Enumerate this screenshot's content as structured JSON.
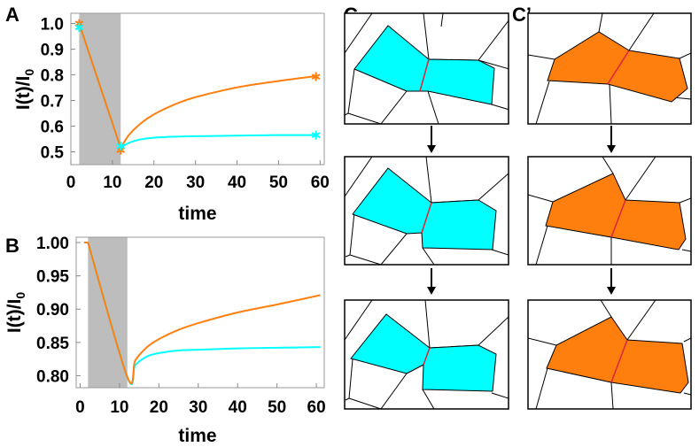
{
  "panel_letters": {
    "a": "A",
    "b": "B",
    "c": "C",
    "c_prime": "C’"
  },
  "colors": {
    "cyan": "#00ffff",
    "orange": "#ff7f0e",
    "shade": "#bdbdbd",
    "junction": "#e0263a"
  },
  "icons": {
    "arrow": "down-arrow-icon",
    "marker": "asterisk-marker-icon"
  },
  "chart_data": [
    {
      "type": "line",
      "panel": "A",
      "title": "",
      "xlabel": "time",
      "ylabel": "I(t)/I0",
      "xlim": [
        0,
        61
      ],
      "ylim": [
        0.45,
        1.04
      ],
      "xticks": [
        "0",
        "10",
        "20",
        "30",
        "40",
        "50",
        "60"
      ],
      "yticks": [
        "0.5",
        "0.6",
        "0.7",
        "0.8",
        "0.9",
        "1.0"
      ],
      "shaded_region": [
        2,
        12
      ],
      "series": [
        {
          "name": "cyan",
          "color": "#00ffff",
          "x": [
            2,
            12,
            14,
            17,
            20,
            25,
            30,
            40,
            50,
            59
          ],
          "y": [
            1.0,
            0.515,
            0.535,
            0.549,
            0.555,
            0.559,
            0.561,
            0.563,
            0.565,
            0.565
          ]
        },
        {
          "name": "orange",
          "color": "#ff7f0e",
          "x": [
            2,
            12,
            14,
            17,
            20,
            25,
            30,
            40,
            50,
            59
          ],
          "y": [
            1.0,
            0.515,
            0.566,
            0.613,
            0.646,
            0.685,
            0.713,
            0.751,
            0.776,
            0.795
          ]
        }
      ],
      "markers": [
        {
          "series": "orange",
          "x": 2,
          "y": 1.0
        },
        {
          "series": "cyan",
          "x": 2,
          "y": 0.985
        },
        {
          "series": "orange",
          "x": 12,
          "y": 0.507
        },
        {
          "series": "cyan",
          "x": 12,
          "y": 0.522
        },
        {
          "series": "orange",
          "x": 59,
          "y": 0.793
        },
        {
          "series": "cyan",
          "x": 59,
          "y": 0.565
        }
      ]
    },
    {
      "type": "line",
      "panel": "B",
      "title": "",
      "xlabel": "time",
      "ylabel": "I(t)/I0",
      "xlim": [
        -1,
        62
      ],
      "ylim": [
        0.782,
        1.008
      ],
      "xticks": [
        "0",
        "10",
        "20",
        "30",
        "40",
        "50",
        "60"
      ],
      "yticks": [
        "0.80",
        "0.85",
        "0.90",
        "0.95",
        "1.00"
      ],
      "shaded_region": [
        2,
        12
      ],
      "series": [
        {
          "name": "cyan",
          "color": "#00ffff",
          "x": [
            1,
            2,
            12,
            14,
            17,
            20,
            25,
            30,
            40,
            50,
            61
          ],
          "y": [
            1.0,
            1.0,
            0.798,
            0.816,
            0.829,
            0.834,
            0.838,
            0.839,
            0.841,
            0.842,
            0.843
          ]
        },
        {
          "name": "orange",
          "color": "#ff7f0e",
          "x": [
            1,
            2,
            12,
            14,
            17,
            20,
            25,
            30,
            40,
            50,
            61
          ],
          "y": [
            1.0,
            1.0,
            0.798,
            0.823,
            0.843,
            0.855,
            0.869,
            0.879,
            0.895,
            0.907,
            0.921
          ]
        }
      ]
    }
  ]
}
